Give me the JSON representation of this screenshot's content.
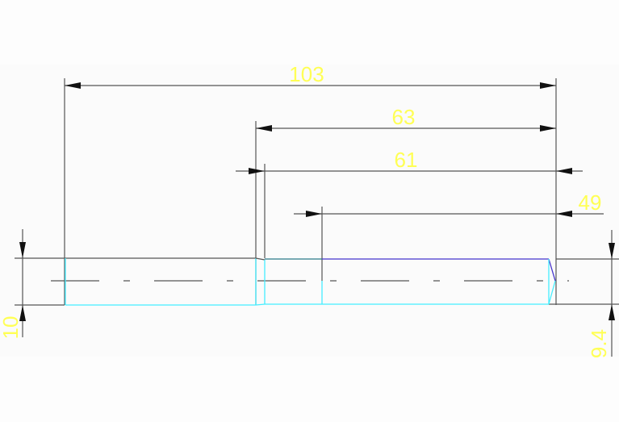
{
  "drawing": {
    "dimensions": {
      "overall_length": "103",
      "length_63": "63",
      "length_61": "61",
      "length_49": "49",
      "diameter_left": "10",
      "diameter_right": "9.4"
    },
    "colors": {
      "outline": "#44eeff",
      "thread": "#4433cc",
      "dimension_text": "#ffff55",
      "lines": "#555555"
    }
  }
}
